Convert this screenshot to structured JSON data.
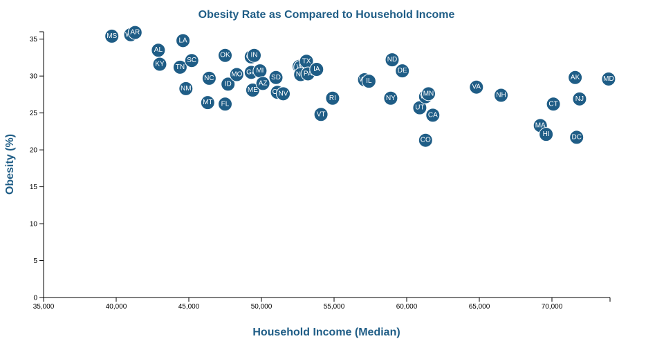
{
  "colors": {
    "accent": "#1f5d86",
    "point": "#1f5d86",
    "point_stroke": "#ffffff",
    "axis": "#000000"
  },
  "chart_data": {
    "type": "scatter",
    "title": "Obesity Rate as Compared to Household Income",
    "xlabel": "Household Income (Median)",
    "ylabel": "Obesity (%)",
    "xlim": [
      35000,
      74000
    ],
    "ylim": [
      0,
      36
    ],
    "xticks": [
      35000,
      40000,
      45000,
      50000,
      55000,
      60000,
      65000,
      70000
    ],
    "xtick_labels": [
      "35,000",
      "40,000",
      "45,000",
      "50,000",
      "55,000",
      "60,000",
      "65,000",
      "70,000"
    ],
    "yticks": [
      0,
      5,
      10,
      15,
      20,
      25,
      30,
      35
    ],
    "ytick_labels": [
      "0",
      "5",
      "10",
      "15",
      "20",
      "25",
      "30",
      "35"
    ],
    "grid": false,
    "points": [
      {
        "label": "MS",
        "x": 39700,
        "y": 35.4
      },
      {
        "label": "WV",
        "x": 41000,
        "y": 35.6
      },
      {
        "label": "AR",
        "x": 41300,
        "y": 35.9
      },
      {
        "label": "AL",
        "x": 42900,
        "y": 33.5
      },
      {
        "label": "LA",
        "x": 44600,
        "y": 34.8
      },
      {
        "label": "KY",
        "x": 43000,
        "y": 31.6
      },
      {
        "label": "TN",
        "x": 44400,
        "y": 31.2
      },
      {
        "label": "SC",
        "x": 45200,
        "y": 32.1
      },
      {
        "label": "OK",
        "x": 47500,
        "y": 32.8
      },
      {
        "label": "NM",
        "x": 44800,
        "y": 28.3
      },
      {
        "label": "NC",
        "x": 46400,
        "y": 29.7
      },
      {
        "label": "MT",
        "x": 46300,
        "y": 26.4
      },
      {
        "label": "FL",
        "x": 47500,
        "y": 26.2
      },
      {
        "label": "ID",
        "x": 47700,
        "y": 28.9
      },
      {
        "label": "MO",
        "x": 48300,
        "y": 30.2
      },
      {
        "label": "OH",
        "x": 49300,
        "y": 32.6
      },
      {
        "label": "IN",
        "x": 49500,
        "y": 32.8
      },
      {
        "label": "GA",
        "x": 49300,
        "y": 30.5
      },
      {
        "label": "MI",
        "x": 49900,
        "y": 30.7
      },
      {
        "label": "ME",
        "x": 49400,
        "y": 28.1
      },
      {
        "label": "AZ",
        "x": 50100,
        "y": 29.0
      },
      {
        "label": "SD",
        "x": 51000,
        "y": 29.8
      },
      {
        "label": "OR",
        "x": 51100,
        "y": 27.8
      },
      {
        "label": "NV",
        "x": 51500,
        "y": 27.6
      },
      {
        "label": "KS",
        "x": 52600,
        "y": 31.3
      },
      {
        "label": "WI",
        "x": 52700,
        "y": 31.2
      },
      {
        "label": "TX",
        "x": 53100,
        "y": 32.0
      },
      {
        "label": "NE",
        "x": 52700,
        "y": 30.2
      },
      {
        "label": "PA",
        "x": 53200,
        "y": 30.3
      },
      {
        "label": "IA",
        "x": 53800,
        "y": 30.9
      },
      {
        "label": "VT",
        "x": 54100,
        "y": 24.8
      },
      {
        "label": "RI",
        "x": 54900,
        "y": 27.0
      },
      {
        "label": "WY",
        "x": 57100,
        "y": 29.5
      },
      {
        "label": "IL",
        "x": 57400,
        "y": 29.3
      },
      {
        "label": "ND",
        "x": 59000,
        "y": 32.2
      },
      {
        "label": "DE",
        "x": 59700,
        "y": 30.7
      },
      {
        "label": "NY",
        "x": 58900,
        "y": 27.0
      },
      {
        "label": "UT",
        "x": 60900,
        "y": 25.7
      },
      {
        "label": "WA",
        "x": 61300,
        "y": 27.2
      },
      {
        "label": "MN",
        "x": 61500,
        "y": 27.6
      },
      {
        "label": "CA",
        "x": 61800,
        "y": 24.7
      },
      {
        "label": "CO",
        "x": 61300,
        "y": 21.3
      },
      {
        "label": "VA",
        "x": 64800,
        "y": 28.5
      },
      {
        "label": "NH",
        "x": 66500,
        "y": 27.4
      },
      {
        "label": "MA",
        "x": 69200,
        "y": 23.3
      },
      {
        "label": "HI",
        "x": 69600,
        "y": 22.1
      },
      {
        "label": "CT",
        "x": 70100,
        "y": 26.2
      },
      {
        "label": "AK",
        "x": 71600,
        "y": 29.8
      },
      {
        "label": "NJ",
        "x": 71900,
        "y": 26.9
      },
      {
        "label": "DC",
        "x": 71700,
        "y": 21.7
      },
      {
        "label": "MD",
        "x": 73900,
        "y": 29.6
      }
    ]
  }
}
